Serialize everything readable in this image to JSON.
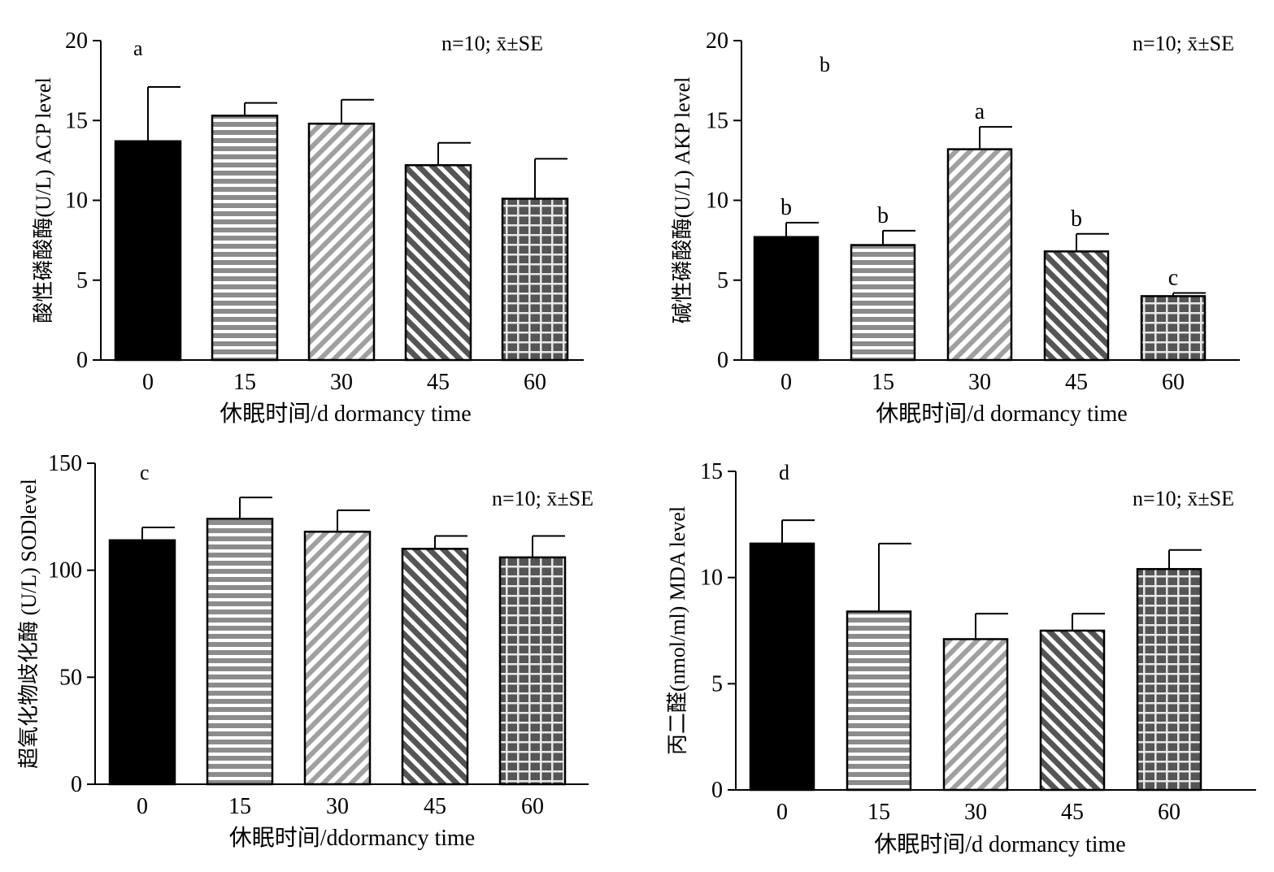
{
  "chart_data": [
    {
      "panel": "a",
      "type": "bar",
      "annotation": "n=10; x̄±SE",
      "categories": [
        "0",
        "15",
        "30",
        "45",
        "60"
      ],
      "values": [
        13.7,
        15.3,
        14.8,
        12.2,
        10.1
      ],
      "errors": [
        3.4,
        0.8,
        1.5,
        1.4,
        2.5
      ],
      "letters": [],
      "ylabel": "酸性磷酸酶(U/L) ACP level",
      "xlabel": "休眠时间/d dormancy time",
      "ylim": [
        0,
        20
      ],
      "yticks": [
        0,
        5,
        10,
        15,
        20
      ]
    },
    {
      "panel": "b",
      "type": "bar",
      "annotation": "n=10; x̄±SE",
      "categories": [
        "0",
        "15",
        "30",
        "45",
        "60"
      ],
      "values": [
        7.7,
        7.2,
        13.2,
        6.8,
        4.0
      ],
      "errors": [
        0.9,
        0.9,
        1.4,
        1.1,
        0.2
      ],
      "letters": [
        "b",
        "b",
        "a",
        "b",
        "c"
      ],
      "ylabel": "碱性磷酸酶(U/L) AKP level",
      "xlabel": "休眠时间/d dormancy time",
      "ylim": [
        0,
        20
      ],
      "yticks": [
        0,
        5,
        10,
        15,
        20
      ]
    },
    {
      "panel": "c",
      "type": "bar",
      "annotation": "n=10; x̄±SE",
      "categories": [
        "0",
        "15",
        "30",
        "45",
        "60"
      ],
      "values": [
        114,
        124,
        118,
        110,
        106
      ],
      "errors": [
        6,
        10,
        10,
        6,
        10
      ],
      "letters": [],
      "ylabel": "超氧化物歧化酶 (U/L) SODlevel",
      "xlabel": "休眠时间/ddormancy time",
      "ylim": [
        0,
        150
      ],
      "yticks": [
        0,
        50,
        100,
        150
      ]
    },
    {
      "panel": "d",
      "type": "bar",
      "annotation": "n=10; x̄±SE",
      "categories": [
        "0",
        "15",
        "30",
        "45",
        "60"
      ],
      "values": [
        11.6,
        8.4,
        7.1,
        7.5,
        10.4
      ],
      "errors": [
        1.1,
        3.2,
        1.2,
        0.8,
        0.9
      ],
      "letters": [],
      "ylabel": "丙二醛(nmol/ml) MDA level",
      "xlabel": "休眠时间/d dormancy time",
      "ylim": [
        0,
        15
      ],
      "yticks": [
        0,
        5,
        10,
        15
      ]
    }
  ]
}
